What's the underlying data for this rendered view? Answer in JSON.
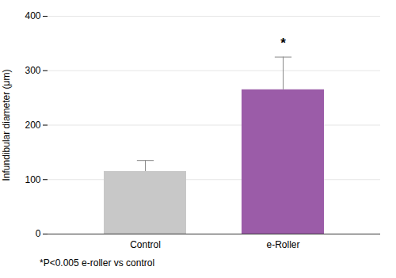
{
  "chart_data": {
    "type": "bar",
    "categories": [
      "Control",
      "e-Roller"
    ],
    "values": [
      115,
      265
    ],
    "errors_up": [
      20,
      60
    ],
    "colors": [
      "#c8c8c8",
      "#9b5ca8"
    ],
    "error_color": "#888888",
    "ylabel": "Infundibular diameter (μm)",
    "ylim": [
      0,
      400
    ],
    "yticks": [
      0,
      100,
      200,
      300,
      400
    ],
    "grid": true,
    "annotations": [
      {
        "text": "*",
        "category": "e-Roller"
      }
    ],
    "footnote": "*P<0.005 e-roller vs control"
  }
}
